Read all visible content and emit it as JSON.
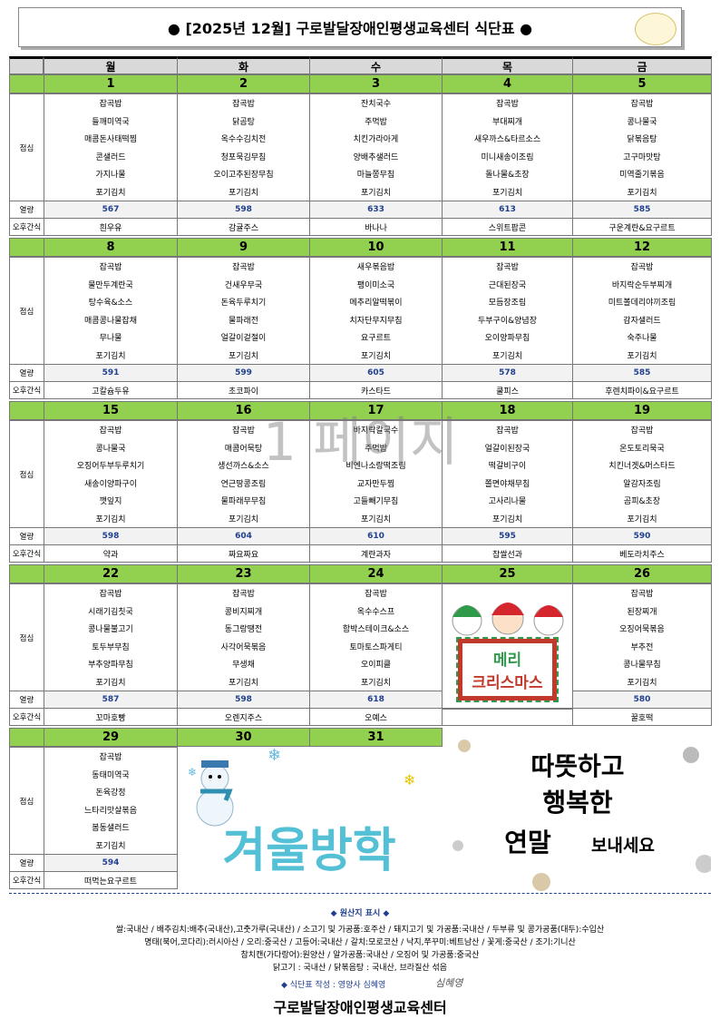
{
  "header": {
    "title": "● [2025년 12월] 구로발달장애인평생교육센터 식단표 ●"
  },
  "days": [
    "월",
    "화",
    "수",
    "목",
    "금"
  ],
  "labels": {
    "lunch": "점심",
    "kcal": "열량",
    "snack": "오후간식"
  },
  "weeks": [
    {
      "dates": [
        1,
        2,
        3,
        4,
        5
      ],
      "days": [
        {
          "menu": [
            "잡곡밥",
            "들깨미역국",
            "매콤돈사태떡찜",
            "콘샐러드",
            "가지나물",
            "포기김치"
          ],
          "kcal": 567,
          "snack": "흰우유"
        },
        {
          "menu": [
            "잡곡밥",
            "닭곰탕",
            "옥수수김치전",
            "청포묵김무침",
            "오이고추된장무침",
            "포기김치"
          ],
          "kcal": 598,
          "snack": "감귤주스"
        },
        {
          "menu": [
            "잔치국수",
            "주먹밥",
            "치킨가라아게",
            "양배추샐러드",
            "마늘쫑무침",
            "포기김치"
          ],
          "kcal": 633,
          "snack": "바나나"
        },
        {
          "menu": [
            "잡곡밥",
            "부대찌개",
            "새우까스&타르소스",
            "미니새송이조림",
            "돌나물&초장",
            "포기김치"
          ],
          "kcal": 613,
          "snack": "스위트팝콘"
        },
        {
          "menu": [
            "잡곡밥",
            "콩나물국",
            "닭볶음탕",
            "고구마맛탕",
            "미역줄기볶음",
            "포기김치"
          ],
          "kcal": 585,
          "snack": "구운계란&요구르트"
        }
      ]
    },
    {
      "dates": [
        8,
        9,
        10,
        11,
        12
      ],
      "days": [
        {
          "menu": [
            "잡곡밥",
            "물만두계란국",
            "탕수육&소스",
            "매콤콩나물잡채",
            "무나물",
            "포기김치"
          ],
          "kcal": 591,
          "snack": "고칼슘두유"
        },
        {
          "menu": [
            "잡곡밥",
            "건새우무국",
            "돈육두루치기",
            "물파래전",
            "얼갈이겉절이",
            "포기김치"
          ],
          "kcal": 599,
          "snack": "초코파이"
        },
        {
          "menu": [
            "새우볶음밥",
            "팽이미소국",
            "메추리알떡볶이",
            "치자단무지무침",
            "요구르트",
            "포기김치"
          ],
          "kcal": 605,
          "snack": "카스타드"
        },
        {
          "menu": [
            "잡곡밥",
            "근대된장국",
            "모듬장조림",
            "두부구이&양념장",
            "오이양파무침",
            "포기김치"
          ],
          "kcal": 578,
          "snack": "쿨피스"
        },
        {
          "menu": [
            "잡곡밥",
            "바지락순두부찌개",
            "미트볼데리야끼조림",
            "감자샐러드",
            "숙주나물",
            "포기김치"
          ],
          "kcal": 585,
          "snack": "후렌치파이&요구르트"
        }
      ]
    },
    {
      "dates": [
        15,
        16,
        17,
        18,
        19
      ],
      "days": [
        {
          "menu": [
            "잡곡밥",
            "콩나물국",
            "오징어두부두루치기",
            "새송이양파구이",
            "깻잎지",
            "포기김치"
          ],
          "kcal": 598,
          "snack": "약과"
        },
        {
          "menu": [
            "잡곡밥",
            "매콤어묵탕",
            "생선까스&소스",
            "연근땅콩조림",
            "물파래무무침",
            "포기김치"
          ],
          "kcal": 604,
          "snack": "짜요짜요"
        },
        {
          "menu": [
            "바지락칼국수",
            "주먹밥",
            "비엔나소랑떡조림",
            "교자만두찜",
            "고들빼기무침",
            "포기김치"
          ],
          "kcal": 610,
          "snack": "계란과자"
        },
        {
          "menu": [
            "잡곡밥",
            "얼갈이된장국",
            "떡갈비구이",
            "쫄면야채무침",
            "고사리나물",
            "포기김치"
          ],
          "kcal": 595,
          "snack": "찹쌀선과"
        },
        {
          "menu": [
            "잡곡밥",
            "온도토리묵국",
            "치킨너겟&머스타드",
            "알감자조림",
            "곰피&초장",
            "포기김치"
          ],
          "kcal": 590,
          "snack": "베도라치주스"
        }
      ]
    },
    {
      "dates": [
        22,
        23,
        24,
        25,
        26
      ],
      "days": [
        {
          "menu": [
            "잡곡밥",
            "시래기김칫국",
            "콩나물불고기",
            "토두부무침",
            "부추양파무침",
            "포기김치"
          ],
          "kcal": 587,
          "snack": "꼬마호빵"
        },
        {
          "menu": [
            "잡곡밥",
            "콩비지찌개",
            "동그랑땡전",
            "사각어묵볶음",
            "무생채",
            "포기김치"
          ],
          "kcal": 598,
          "snack": "오렌지주스"
        },
        {
          "menu": [
            "잡곡밥",
            "옥수수스프",
            "함박스테이크&소스",
            "토마토스파게티",
            "오이피클",
            "포기김치"
          ],
          "kcal": 618,
          "snack": "오예스"
        },
        {
          "greeting": [
            "메리",
            "크리스마스"
          ]
        },
        {
          "menu": [
            "잡곡밥",
            "된장찌개",
            "오징어묵볶음",
            "부추전",
            "콩나물무침",
            "포기김치"
          ],
          "kcal": 580,
          "snack": "꿀호떡"
        }
      ]
    },
    {
      "dates": [
        29,
        30,
        31
      ],
      "days": [
        {
          "menu": [
            "잡곡밥",
            "동태미역국",
            "돈육강정",
            "느타리맛살볶음",
            "봄동샐러드",
            "포기김치"
          ],
          "kcal": 594,
          "snack": "떠먹는요구르트"
        }
      ]
    }
  ],
  "banners": {
    "vacation": "겨울방학",
    "year_end": [
      "따뜻하고",
      "행복한",
      "연말",
      "보내세요"
    ]
  },
  "watermark": "1 페이지",
  "footer": {
    "origin_title": "◆ 원산지 표시 ◆",
    "origin_lines": [
      "쌀:국내산 / 배추김치:배추(국내산),고춧가루(국내산) / 소고기 및 가공품:호주산 / 돼지고기 및 가공품:국내산 / 두부류 및 콩가공품(대두):수입산",
      "명태(북어,코다리):러시아산 / 오리:중국산 / 고등어:국내산 / 갈치:모로코산 / 낙지,쭈꾸미:베트남산 / 꽃게:중국산 / 조기:기니산",
      "참치캔(가다랑어):원양산 / 알가공품:국내산 / 오징어 및 가공품:중국산",
      "닭고기 : 국내산 / 닭볶음탕 : 국내산, 브라질산 섞음"
    ],
    "author": "◆ 식단표 작성 : 영양사 심혜영",
    "signature": "심혜영",
    "org": "구로발달장애인평생교육센터"
  }
}
